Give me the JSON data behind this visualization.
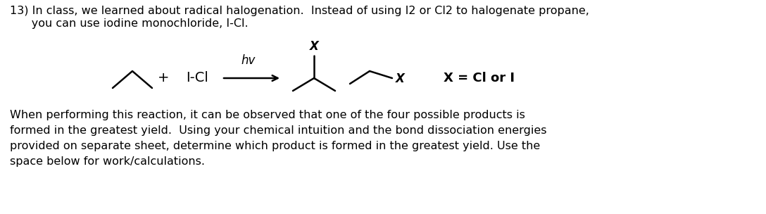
{
  "bg_color": "#ffffff",
  "figsize": [
    10.88,
    3.04
  ],
  "dpi": 100,
  "title_text": "13) In class, we learned about radical halogenation.  Instead of using I2 or Cl2 to halogenate propane,",
  "title_line2": "      you can use iodine monochloride, I-Cl.",
  "body_line1": "When performing this reaction, it can be observed that one of the four possible products is",
  "body_line2": "formed in the greatest yield.  Using your chemical intuition and the bond dissociation energies",
  "body_line3": "provided on separate sheet, determine which product is formed in the greatest yield. Use the",
  "body_line4": "space below for work/calculations.",
  "font_family": "sans-serif",
  "font_size_title": 11.5,
  "font_size_body": 11.5,
  "label_hv": "hv",
  "label_x_eq": "X = Cl or I",
  "label_X1": "X",
  "label_X2": "X",
  "label_plus": "+",
  "label_ICI": "I-Cl"
}
